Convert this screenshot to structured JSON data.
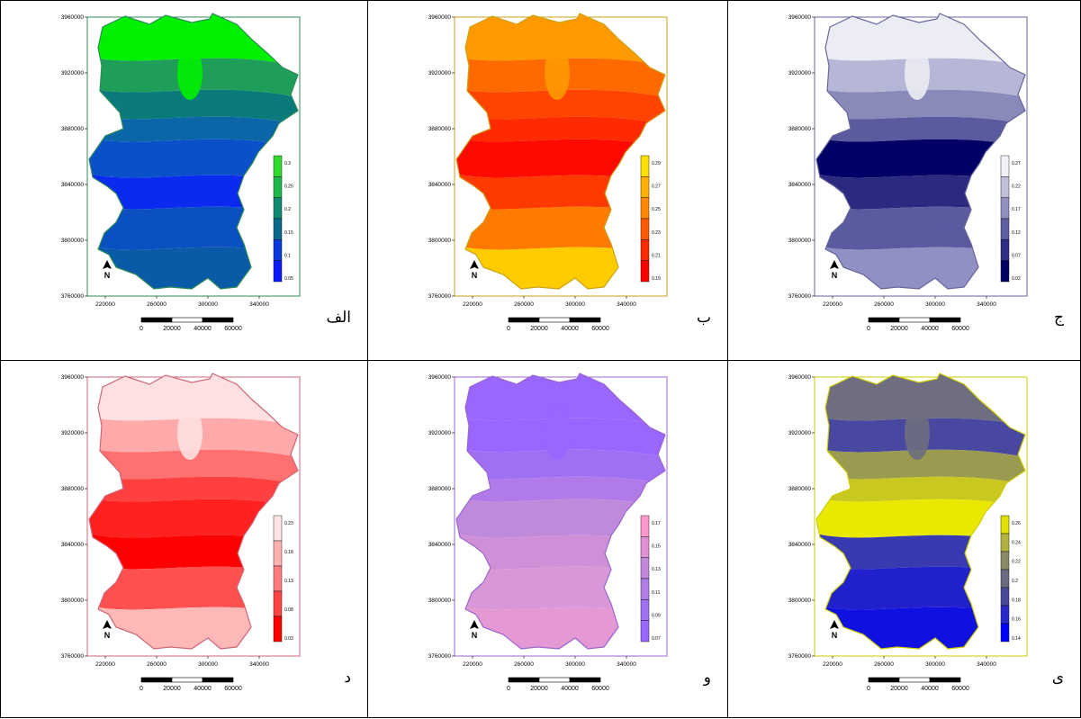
{
  "x_ticks": [
    "220000",
    "260000",
    "300000",
    "340000"
  ],
  "y_ticks": [
    "3960000",
    "3920000",
    "3880000",
    "3840000",
    "3800000",
    "3760000"
  ],
  "scale_bar": {
    "labels": [
      "0",
      "20000",
      "40000",
      "60000"
    ]
  },
  "north_arrow": {
    "symbol": "N",
    "icon": "north-arrow-icon"
  },
  "panels": [
    {
      "caption": "الف",
      "frame_color": "#2e8b57",
      "legend": {
        "labels": [
          "0.3",
          "0.25",
          "0.2",
          "0.15",
          "0.1",
          "0.05"
        ],
        "colors": [
          "#2fd92f",
          "#1fb84a",
          "#0f8a72",
          "#0a6a8a",
          "#0a3adb",
          "#0a1aff"
        ]
      },
      "colors": [
        "#00f000",
        "#1f9e5a",
        "#0b7a7a",
        "#0b66a8",
        "#0a50c8",
        "#0a2af0",
        "#0a50c0",
        "#0a5aa8"
      ]
    },
    {
      "caption": "ب",
      "frame_color": "#c9a21a",
      "legend": {
        "labels": [
          "0.29",
          "0.27",
          "0.25",
          "0.23",
          "0.21",
          "0.19"
        ],
        "colors": [
          "#ffe000",
          "#ffb000",
          "#ff8800",
          "#ff5a00",
          "#ff2a00",
          "#ff0000"
        ]
      },
      "colors": [
        "#ff9a00",
        "#ff6a00",
        "#ff4400",
        "#ff2a00",
        "#ff0a00",
        "#ff3a00",
        "#ff7a00",
        "#ffcc00"
      ]
    },
    {
      "caption": "ج",
      "frame_color": "#666699",
      "legend": {
        "labels": [
          "0.27",
          "0.22",
          "0.17",
          "0.12",
          "0.07",
          "0.02"
        ],
        "colors": [
          "#f2f2f8",
          "#c0c0dc",
          "#8f8fc0",
          "#5e5ea4",
          "#2e2e86",
          "#000066"
        ]
      },
      "colors": [
        "#ececf4",
        "#b6b6d6",
        "#8a8aba",
        "#5a5a9e",
        "#000066",
        "#2a2a80",
        "#5a5aa0",
        "#9090c4"
      ]
    },
    {
      "caption": "د",
      "frame_color": "#cc6677",
      "legend": {
        "labels": [
          "0.23",
          "0.18",
          "0.13",
          "0.08",
          "0.03"
        ],
        "colors": [
          "#ffe4e4",
          "#ffb0b0",
          "#ff7a7a",
          "#ff4444",
          "#ff0000"
        ]
      },
      "colors": [
        "#ffe0e0",
        "#ffaaaa",
        "#ff7070",
        "#ff4040",
        "#ff2020",
        "#ff0000",
        "#ff5050",
        "#ffb8b8"
      ]
    },
    {
      "caption": "و",
      "frame_color": "#9966cc",
      "legend": {
        "labels": [
          "0.17",
          "0.15",
          "0.13",
          "0.11",
          "0.09",
          "0.07"
        ],
        "colors": [
          "#ff99cc",
          "#e190d6",
          "#c388dc",
          "#b07ee4",
          "#a070f0",
          "#9a66ff"
        ]
      },
      "colors": [
        "#9966ff",
        "#9966ff",
        "#a070f4",
        "#b07ae8",
        "#c08adc",
        "#d090d8",
        "#d898d8",
        "#e498d4"
      ]
    },
    {
      "caption": "ی",
      "frame_color": "#cccc00",
      "legend": {
        "labels": [
          "0.26",
          "0.24",
          "0.22",
          "0.2",
          "0.18",
          "0.16",
          "0.14"
        ],
        "colors": [
          "#e0e000",
          "#b2b240",
          "#8a8a66",
          "#6a6a80",
          "#4a4a9c",
          "#2a2acc",
          "#0000ff"
        ]
      },
      "colors": [
        "#6e6e80",
        "#4848a0",
        "#9a9a50",
        "#c8c820",
        "#e8e800",
        "#3a3ab0",
        "#2020cc",
        "#1010e0"
      ]
    }
  ]
}
